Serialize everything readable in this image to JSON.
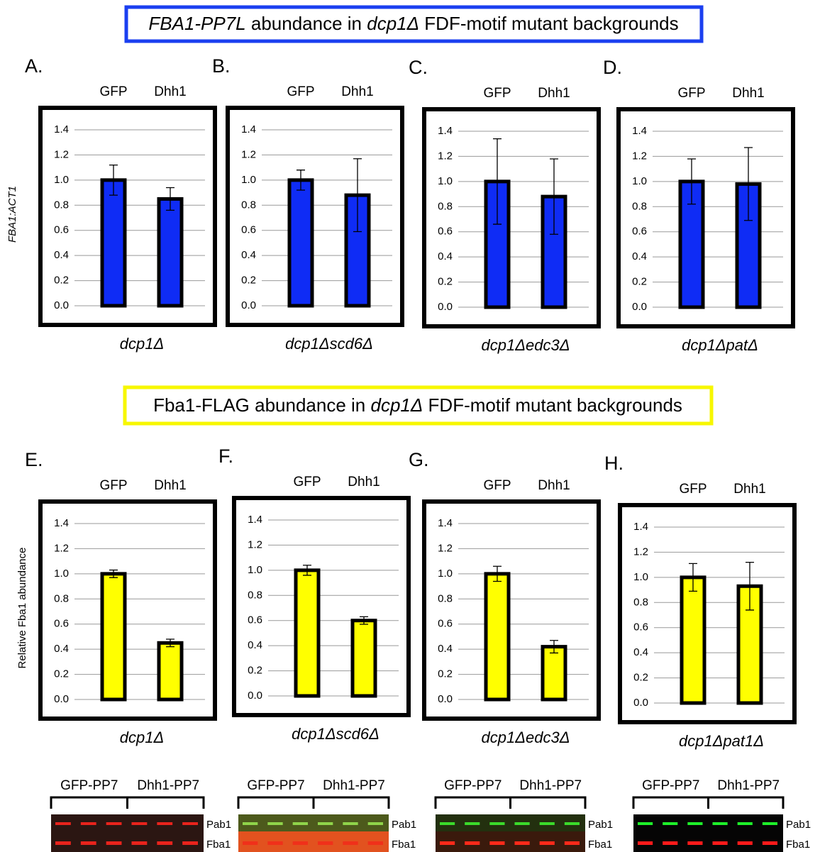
{
  "sections": [
    {
      "title_parts": [
        "FBA1-PP7L",
        " abundance in ",
        "dcp1Δ",
        " FDF-motif mutant backgrounds"
      ]
    },
    {
      "title_parts": [
        "Fba1-FLAG abundance in ",
        "dcp1Δ",
        " FDF-motif mutant backgrounds"
      ]
    }
  ],
  "chart_data": [
    {
      "type": "bar",
      "panel": "A.",
      "categories": [
        "GFP",
        "Dhh1"
      ],
      "values": [
        1.0,
        0.85
      ],
      "errors": [
        0.12,
        0.09
      ],
      "color": "#0f2cf5",
      "xlabel": "dcp1Δ",
      "ylabel": "FBA1:ACT1",
      "ylim": [
        0,
        1.4
      ],
      "yticks": [
        {
          "value": 0,
          "label": "0.0"
        },
        0.2,
        0.4,
        0.6,
        0.8,
        {
          "value": 1,
          "label": "1.0"
        },
        1.2,
        1.4
      ],
      "grid": true
    },
    {
      "type": "bar",
      "panel": "B.",
      "categories": [
        "GFP",
        "Dhh1"
      ],
      "values": [
        1.0,
        0.88
      ],
      "errors": [
        0.08,
        0.29
      ],
      "color": "#0f2cf5",
      "xlabel": "dcp1Δscd6Δ",
      "ylim": [
        0,
        1.4
      ],
      "yticks": [
        {
          "value": 0,
          "label": "0.0"
        },
        0.2,
        0.4,
        0.6,
        0.8,
        {
          "value": 1,
          "label": "1.0"
        },
        1.2,
        1.4
      ],
      "grid": true
    },
    {
      "type": "bar",
      "panel": "C.",
      "categories": [
        "GFP",
        "Dhh1"
      ],
      "values": [
        1.0,
        0.88
      ],
      "errors": [
        0.34,
        0.3
      ],
      "color": "#0f2cf5",
      "xlabel": "dcp1Δedc3Δ",
      "ylim": [
        0,
        1.4
      ],
      "yticks": [
        {
          "value": 0,
          "label": "0.0"
        },
        0.2,
        0.4,
        0.6,
        0.8,
        {
          "value": 1,
          "label": "1.0"
        },
        1.2,
        1.4
      ],
      "grid": true
    },
    {
      "type": "bar",
      "panel": "D.",
      "categories": [
        "GFP",
        "Dhh1"
      ],
      "values": [
        1.0,
        0.98
      ],
      "errors": [
        0.18,
        0.29
      ],
      "color": "#0f2cf5",
      "xlabel": "dcp1ΔpatΔ",
      "ylim": [
        0,
        1.4
      ],
      "yticks": [
        {
          "value": 0,
          "label": "0.0"
        },
        0.2,
        0.4,
        0.6,
        0.8,
        {
          "value": 1,
          "label": "1.0"
        },
        1.2,
        1.4
      ],
      "grid": true
    },
    {
      "type": "bar",
      "panel": "E.",
      "categories": [
        "GFP",
        "Dhh1"
      ],
      "values": [
        1.0,
        0.45
      ],
      "errors": [
        0.03,
        0.03
      ],
      "color": "#ffff00",
      "xlabel": "dcp1Δ",
      "ylabel": "Relative Fba1 abundance",
      "ylim": [
        0,
        1.4
      ],
      "yticks": [
        {
          "value": 0,
          "label": "0.0"
        },
        0.2,
        0.4,
        0.6,
        0.8,
        {
          "value": 1,
          "label": "1.0"
        },
        1.2,
        1.4
      ],
      "grid": true
    },
    {
      "type": "bar",
      "panel": "F.",
      "categories": [
        "GFP",
        "Dhh1"
      ],
      "values": [
        1.0,
        0.6
      ],
      "errors": [
        0.04,
        0.03
      ],
      "color": "#ffff00",
      "xlabel": "dcp1Δscd6Δ",
      "ylim": [
        0,
        1.4
      ],
      "yticks": [
        {
          "value": 0,
          "label": "0.0"
        },
        0.2,
        0.4,
        0.6,
        0.8,
        {
          "value": 1,
          "label": "1.0"
        },
        1.2,
        1.4
      ],
      "grid": true
    },
    {
      "type": "bar",
      "panel": "G.",
      "categories": [
        "GFP",
        "Dhh1"
      ],
      "values": [
        1.0,
        0.42
      ],
      "errors": [
        0.06,
        0.05
      ],
      "color": "#ffff00",
      "xlabel": "dcp1Δedc3Δ",
      "ylim": [
        0,
        1.4
      ],
      "yticks": [
        {
          "value": 0,
          "label": "0.0"
        },
        0.2,
        0.4,
        0.6,
        0.8,
        {
          "value": 1,
          "label": "1.0"
        },
        1.2,
        1.4
      ],
      "grid": true
    },
    {
      "type": "bar",
      "panel": "H.",
      "categories": [
        "GFP",
        "Dhh1"
      ],
      "values": [
        1.0,
        0.93
      ],
      "errors": [
        0.11,
        0.19
      ],
      "color": "#ffff00",
      "xlabel": "dcp1Δpat1Δ",
      "ylim": [
        0,
        1.4
      ],
      "yticks": [
        {
          "value": 0,
          "label": "0.0"
        },
        0.2,
        0.4,
        0.6,
        0.8,
        {
          "value": 1,
          "label": "1.0"
        },
        1.2,
        1.4
      ],
      "grid": true
    }
  ],
  "blots": [
    {
      "groups": [
        "GFP-PP7",
        "Dhh1-PP7"
      ],
      "bands": [
        "Pab1",
        "Fba1"
      ]
    },
    {
      "groups": [
        "GFP-PP7",
        "Dhh1-PP7"
      ],
      "bands": [
        "Pab1",
        "Fba1"
      ]
    },
    {
      "groups": [
        "GFP-PP7",
        "Dhh1-PP7"
      ],
      "bands": [
        "Pab1",
        "Fba1"
      ]
    },
    {
      "groups": [
        "GFP-PP7",
        "Dhh1-PP7"
      ],
      "bands": [
        "Pab1",
        "Fba1"
      ]
    }
  ]
}
